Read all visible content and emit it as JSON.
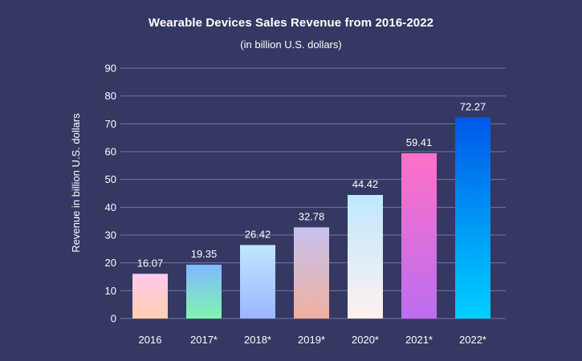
{
  "chart_data": {
    "type": "bar",
    "title": "Wearable Devices Sales Revenue from 2016-2022",
    "subtitle": "(in billion U.S. dollars)",
    "ylabel": "Revenue in billion U.S. dollars",
    "xlabel": "",
    "categories": [
      "2016",
      "2017*",
      "2018*",
      "2019*",
      "2020*",
      "2021*",
      "2022*"
    ],
    "values": [
      16.07,
      19.35,
      26.42,
      32.78,
      44.42,
      59.41,
      72.27
    ],
    "value_labels": [
      "16.07",
      "19.35",
      "26.42",
      "32.78",
      "44.42",
      "59.41",
      "72.27"
    ],
    "ylim": [
      0,
      90
    ],
    "yticks": [
      0,
      10,
      20,
      30,
      40,
      50,
      60,
      70,
      80,
      90
    ],
    "grid": true,
    "bar_gradients": [
      [
        "#ffc9ec",
        "#ffcfb0"
      ],
      [
        "#80b8ff",
        "#80f5b0"
      ],
      [
        "#bfe6ff",
        "#9bb6ff"
      ],
      [
        "#c6c2f0",
        "#f0b0a0"
      ],
      [
        "#bfe8ff",
        "#fff1ee"
      ],
      [
        "#ff70c8",
        "#bb6ef0"
      ],
      [
        "#0058e8",
        "#00d0ff"
      ]
    ]
  }
}
